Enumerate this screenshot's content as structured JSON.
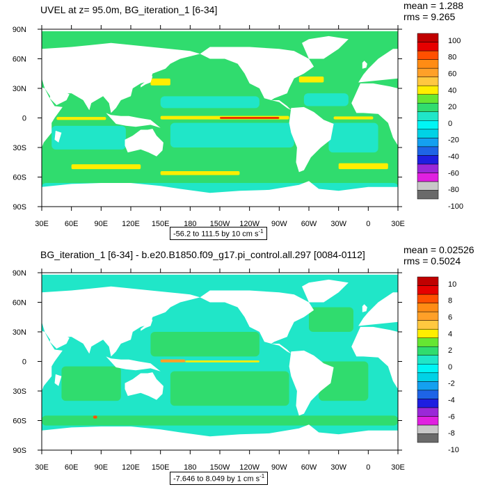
{
  "colors": {
    "background": "#ffffff",
    "land": "#ffffff",
    "frame": "#000000"
  },
  "palette": [
    "#6a6a6a",
    "#c8c8c8",
    "#e020e0",
    "#9a28d8",
    "#1e1ee0",
    "#1e64e6",
    "#14a0f0",
    "#00d2e6",
    "#00f5f5",
    "#20e6c8",
    "#30dc6e",
    "#66e632",
    "#ffee00",
    "#ffc840",
    "#ffa028",
    "#ff8c14",
    "#ff5000",
    "#e60000",
    "#c00000"
  ],
  "panels": [
    {
      "id": "top",
      "title": "UVEL at z=  95.0m, BG_iteration_1 [6-34]",
      "stats": {
        "mean": "mean = 1.288",
        "rms": "rms = 9.265"
      },
      "range_text": "-56.2 to 111.5 by 10 cm s",
      "range_unit_exp": "-1",
      "colorbar_labels": [
        "100",
        "80",
        "60",
        "40",
        "20",
        "0",
        "-20",
        "-40",
        "-60",
        "-80",
        "-100"
      ],
      "background_field": "#30dc6e",
      "features": [
        {
          "name": "equatorial-undercurrent-pacific",
          "lon": [
            150,
            280
          ],
          "lat": [
            -1.5,
            2
          ],
          "color": "#ffee00"
        },
        {
          "name": "equatorial-undercurrent-core",
          "lon": [
            210,
            270
          ],
          "lat": [
            -0.8,
            0.8
          ],
          "color": "#e60000"
        },
        {
          "name": "equatorial-undercurrent-atlantic",
          "lon": [
            325,
            365
          ],
          "lat": [
            -1.5,
            1.5
          ],
          "color": "#ffee00"
        },
        {
          "name": "indian-equatorial-jet",
          "lon": [
            45,
            95
          ],
          "lat": [
            -2,
            1
          ],
          "color": "#ffee00"
        },
        {
          "name": "kuroshio",
          "lon": [
            140,
            160
          ],
          "lat": [
            33,
            40
          ],
          "color": "#ffee00"
        },
        {
          "name": "gulf-stream",
          "lon": [
            290,
            315
          ],
          "lat": [
            36,
            42
          ],
          "color": "#ffee00"
        },
        {
          "name": "acc-indian",
          "lon": [
            60,
            130
          ],
          "lat": [
            -52,
            -47
          ],
          "color": "#ffee00"
        },
        {
          "name": "acc-pacific",
          "lon": [
            150,
            230
          ],
          "lat": [
            -58,
            -54
          ],
          "color": "#ffee00"
        },
        {
          "name": "acc-atlantic",
          "lon": [
            330,
            380
          ],
          "lat": [
            -52,
            -46
          ],
          "color": "#ffee00"
        }
      ],
      "westward_bands": [
        {
          "name": "westward-north-pacific",
          "lon": [
            150,
            250
          ],
          "lat": [
            10,
            22
          ]
        },
        {
          "name": "westward-south-pacific",
          "lon": [
            160,
            285
          ],
          "lat": [
            -30,
            -5
          ]
        },
        {
          "name": "westward-south-indian",
          "lon": [
            40,
            115
          ],
          "lat": [
            -32,
            -8
          ]
        },
        {
          "name": "westward-south-atlantic",
          "lon": [
            320,
            370
          ],
          "lat": [
            -35,
            -5
          ]
        },
        {
          "name": "westward-southern-ocean",
          "lon": [
            30,
            390
          ],
          "lat": [
            -80,
            -66
          ]
        },
        {
          "name": "westward-north-atlantic",
          "lon": [
            295,
            340
          ],
          "lat": [
            12,
            25
          ]
        }
      ]
    },
    {
      "id": "bottom",
      "title": "BG_iteration_1 [6-34] - b.e20.B1850.f09_g17.pi_control.all.297 [0084-0112]",
      "stats": {
        "mean": "mean = 0.02526",
        "rms": "rms = 0.5024"
      },
      "range_text": "-7.646 to 8.049 by 1 cm s",
      "range_unit_exp": "-1",
      "colorbar_labels": [
        "10",
        "8",
        "6",
        "4",
        "2",
        "0",
        "-2",
        "-4",
        "-6",
        "-8",
        "-10"
      ],
      "background_field": "#20e6c8",
      "features": [
        {
          "name": "diff-equatorial-pacific",
          "lon": [
            175,
            250
          ],
          "lat": [
            -1,
            1
          ],
          "color": "#ffee00"
        },
        {
          "name": "diff-equatorial-west",
          "lon": [
            150,
            175
          ],
          "lat": [
            -1,
            2
          ],
          "color": "#ffa028"
        },
        {
          "name": "diff-south-indian",
          "lon": [
            82,
            86
          ],
          "lat": [
            -58,
            -55
          ],
          "color": "#ff5000"
        }
      ],
      "westward_bands": [
        {
          "name": "green-north-pacific",
          "lon": [
            140,
            250
          ],
          "lat": [
            5,
            30
          ]
        },
        {
          "name": "green-south-pacific",
          "lon": [
            160,
            280
          ],
          "lat": [
            -45,
            -10
          ]
        },
        {
          "name": "green-indian",
          "lon": [
            50,
            110
          ],
          "lat": [
            -40,
            -5
          ]
        },
        {
          "name": "green-atlantic",
          "lon": [
            310,
            360
          ],
          "lat": [
            -40,
            0
          ]
        },
        {
          "name": "green-southern-ocean",
          "lon": [
            30,
            390
          ],
          "lat": [
            -65,
            -55
          ]
        },
        {
          "name": "green-north-atlantic",
          "lon": [
            300,
            345
          ],
          "lat": [
            30,
            55
          ]
        }
      ]
    }
  ],
  "lat_labels": [
    "90N",
    "60N",
    "30N",
    "0",
    "30S",
    "60S",
    "90S"
  ],
  "lon_labels": [
    "30E",
    "60E",
    "90E",
    "120E",
    "150E",
    "180",
    "150W",
    "120W",
    "90W",
    "60W",
    "30W",
    "0",
    "30E"
  ]
}
